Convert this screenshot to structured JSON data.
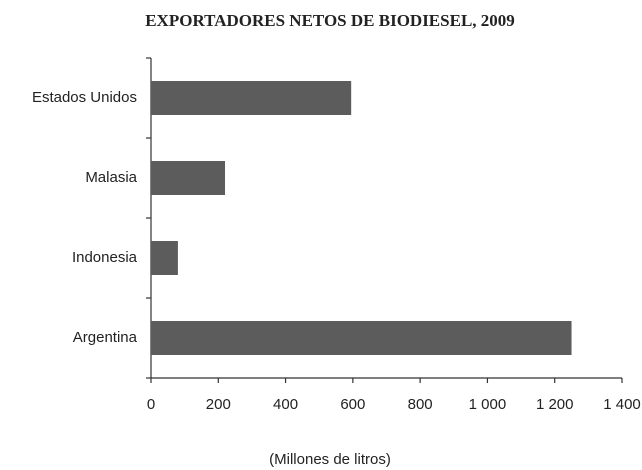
{
  "chart_data": {
    "type": "bar",
    "orientation": "horizontal",
    "title": "EXPORTADORES NETOS DE BIODIESEL, 2009",
    "x_label": "(Millones de litros)",
    "categories": [
      "Estados Unidos",
      "Malasia",
      "Indonesia",
      "Argentina"
    ],
    "values": [
      595,
      220,
      80,
      1250
    ],
    "color": "#5c5c5c",
    "xlim": [
      0,
      1400
    ],
    "xticks": [
      0,
      200,
      400,
      600,
      800,
      {
        "value": 1000,
        "label": "1 000"
      },
      {
        "value": 1200,
        "label": "1 200"
      },
      {
        "value": 1400,
        "label": "1 400"
      }
    ],
    "grid": false
  }
}
